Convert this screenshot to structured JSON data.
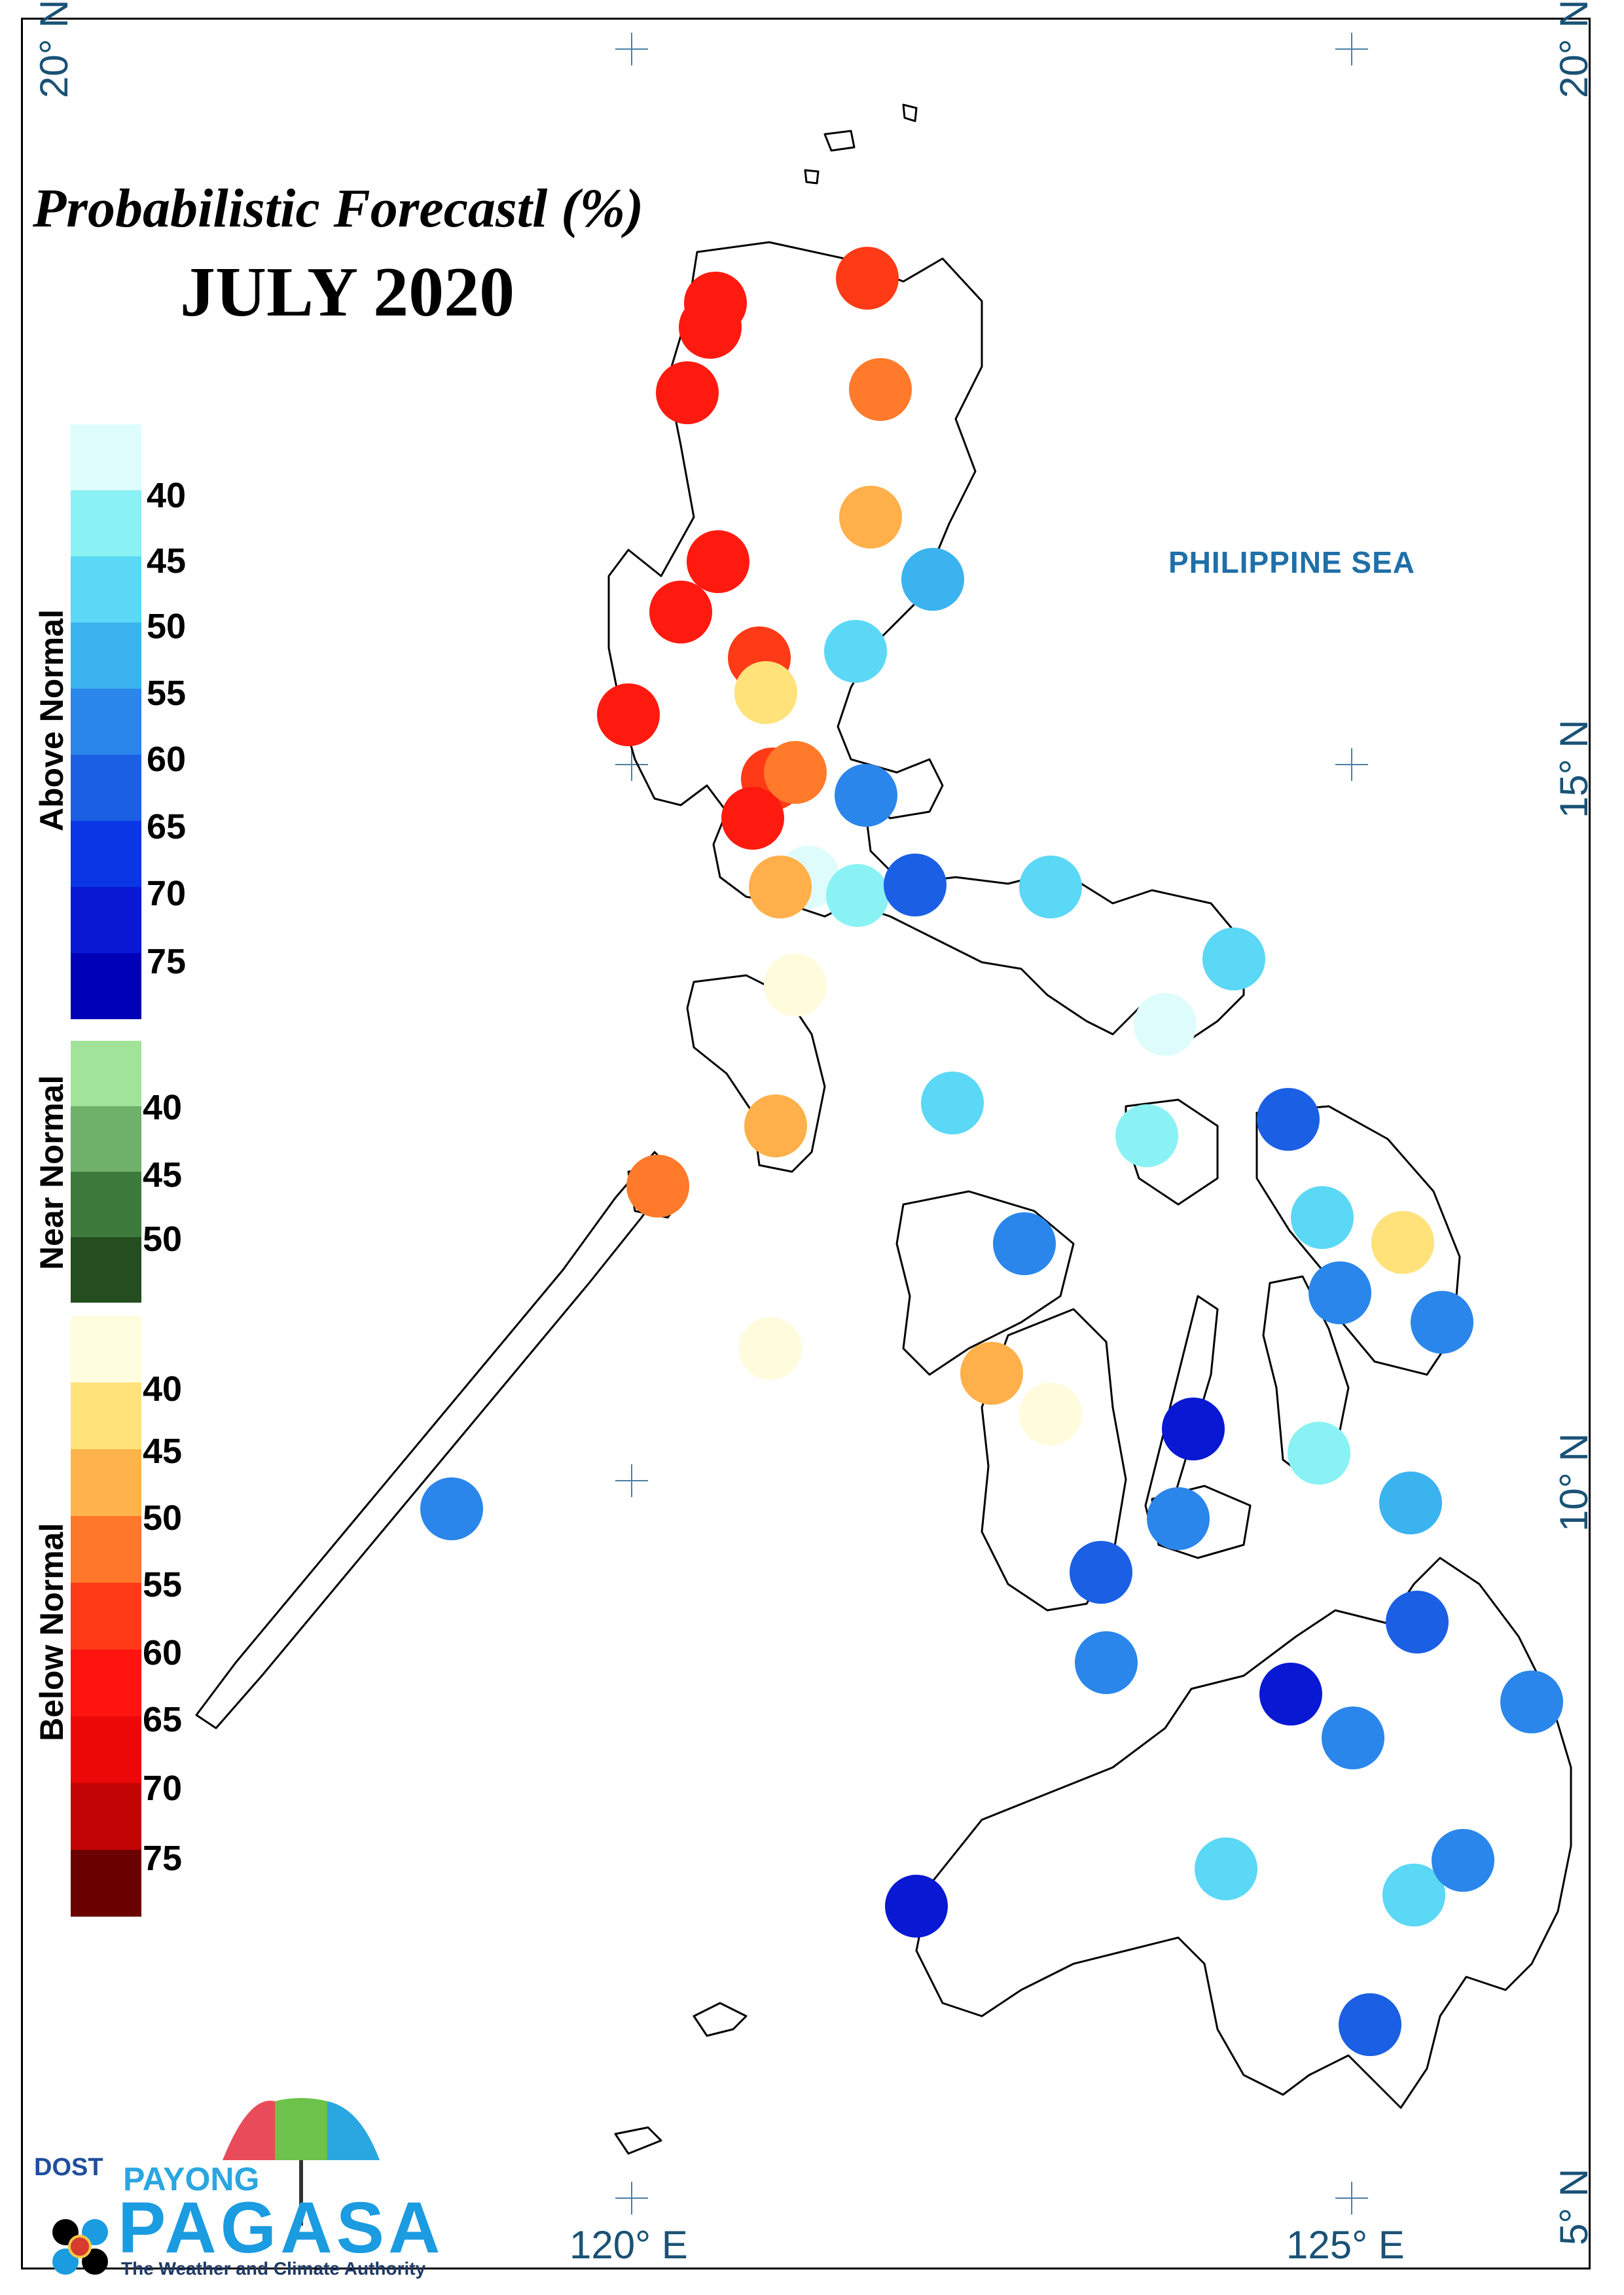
{
  "title": "Probabilistic Forecastl (%)",
  "month": "JULY 2020",
  "sea_label": "PHILIPPINE SEA",
  "axis_labels": {
    "lat_20_left": "20° N",
    "lat_20_right": "20° N",
    "lat_15": "15° N",
    "lat_10": "10° N",
    "lat_5": "5° N",
    "lon_120": "120° E",
    "lon_125": "125° E"
  },
  "legend": {
    "above": {
      "label": "Above Normal",
      "colors": [
        "#dffcfd",
        "#8af2f4",
        "#5ad8f5",
        "#3bb3ef",
        "#2a86ea",
        "#1b5fe4",
        "#0b36e6",
        "#0818d3",
        "#0000b6"
      ],
      "ticks": [
        "40",
        "45",
        "50",
        "55",
        "60",
        "65",
        "70",
        "75"
      ]
    },
    "near": {
      "label": "Near Normal",
      "colors": [
        "#a2e39a",
        "#6fb06a",
        "#3f7a3d",
        "#244d20"
      ],
      "ticks": [
        "40",
        "45",
        "50"
      ]
    },
    "below": {
      "label": "Below Normal",
      "colors": [
        "#fffde0",
        "#ffe27a",
        "#ffb34a",
        "#ff772a",
        "#ff3a17",
        "#ff1410",
        "#ed0808",
        "#c00404",
        "#6b0000"
      ],
      "ticks": [
        "40",
        "45",
        "50",
        "55",
        "60",
        "65",
        "70",
        "75"
      ]
    }
  },
  "logo": {
    "dost": "DOST",
    "payong": "PAYONG",
    "pagasa": "PAGASA",
    "tagline": "The Weather and Climate Authority"
  },
  "stations_note_colors": {
    "below_65": "#ff1a10",
    "below_60": "#ff3a17",
    "below_55": "#ff7a2a",
    "below_50": "#ffb04a",
    "below_45": "#ffe27a",
    "below_40": "#fffbdc",
    "above_40": "#dffcfd",
    "above_45": "#8af2f4",
    "above_50": "#5ad8f5",
    "above_55": "#3bb3ef",
    "above_60": "#2a86ea",
    "above_65": "#1b5fe4",
    "above_70": "#0818d3"
  },
  "stations": [
    {
      "cat": "below_65"
    },
    {
      "cat": "below_65"
    },
    {
      "cat": "below_65"
    },
    {
      "cat": "below_60"
    },
    {
      "cat": "below_55"
    },
    {
      "cat": "below_50"
    },
    {
      "cat": "below_65"
    },
    {
      "cat": "below_65"
    },
    {
      "cat": "above_55"
    },
    {
      "cat": "above_50"
    },
    {
      "cat": "below_60"
    },
    {
      "cat": "below_45"
    },
    {
      "cat": "below_65"
    },
    {
      "cat": "below_60"
    },
    {
      "cat": "above_60"
    },
    {
      "cat": "below_65"
    },
    {
      "cat": "below_55"
    },
    {
      "cat": "above_40"
    },
    {
      "cat": "below_50"
    },
    {
      "cat": "above_45"
    },
    {
      "cat": "above_65"
    },
    {
      "cat": "above_50"
    },
    {
      "cat": "above_50"
    },
    {
      "cat": "above_40"
    },
    {
      "cat": "below_40"
    },
    {
      "cat": "above_50"
    },
    {
      "cat": "below_50"
    },
    {
      "cat": "above_45"
    },
    {
      "cat": "above_65"
    },
    {
      "cat": "below_55"
    },
    {
      "cat": "above_60"
    },
    {
      "cat": "above_50"
    },
    {
      "cat": "below_45"
    },
    {
      "cat": "above_60"
    },
    {
      "cat": "above_60"
    },
    {
      "cat": "below_40"
    },
    {
      "cat": "below_50"
    },
    {
      "cat": "below_40"
    },
    {
      "cat": "above_70"
    },
    {
      "cat": "above_45"
    },
    {
      "cat": "above_55"
    },
    {
      "cat": "above_60"
    },
    {
      "cat": "above_65"
    },
    {
      "cat": "above_60"
    },
    {
      "cat": "above_65"
    },
    {
      "cat": "above_70"
    },
    {
      "cat": "above_60"
    },
    {
      "cat": "above_60"
    },
    {
      "cat": "above_70"
    },
    {
      "cat": "above_50"
    },
    {
      "cat": "above_50"
    },
    {
      "cat": "above_60"
    },
    {
      "cat": "above_65"
    },
    {
      "cat": "above_60"
    }
  ]
}
